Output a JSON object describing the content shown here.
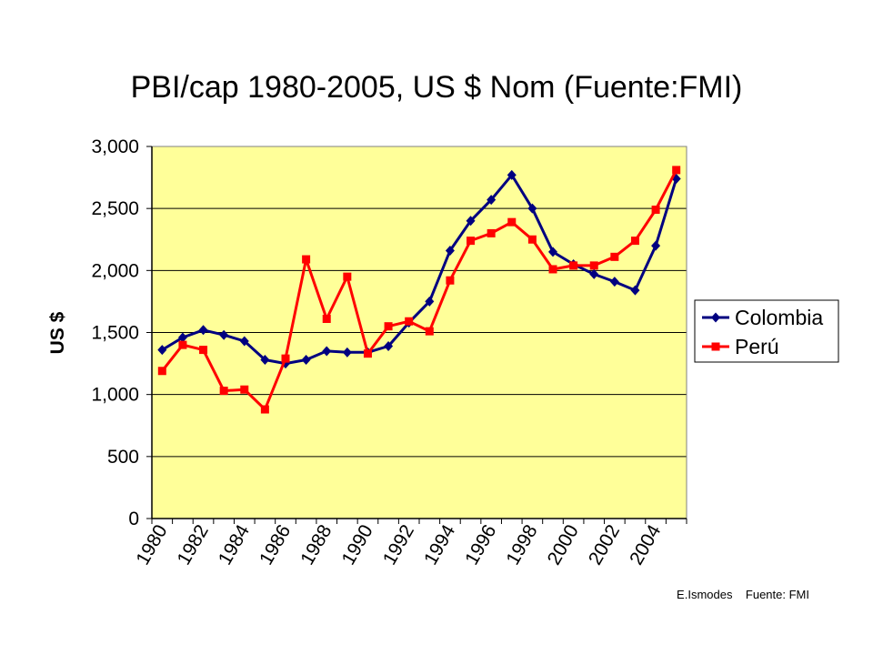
{
  "chart_data": {
    "type": "line",
    "title": "PBI/cap 1980-2005, US $ Nom (Fuente:FMI)",
    "xlabel": "",
    "ylabel": "US $",
    "ylim": [
      0,
      3000
    ],
    "yticks": [
      "0",
      "500",
      "1,000",
      "1,500",
      "2,000",
      "2,500",
      "3,000"
    ],
    "xtick_labels": [
      "1980",
      "1982",
      "1984",
      "1986",
      "1988",
      "1990",
      "1992",
      "1994",
      "1996",
      "1998",
      "2000",
      "2002",
      "2004"
    ],
    "x": [
      1980,
      1981,
      1982,
      1983,
      1984,
      1985,
      1986,
      1987,
      1988,
      1989,
      1990,
      1991,
      1992,
      1993,
      1994,
      1995,
      1996,
      1997,
      1998,
      1999,
      2000,
      2001,
      2002,
      2003,
      2004,
      2005
    ],
    "series": [
      {
        "name": "Colombia",
        "color": "#000080",
        "marker": "diamond",
        "values": [
          1360,
          1460,
          1520,
          1480,
          1430,
          1280,
          1250,
          1280,
          1350,
          1340,
          1340,
          1390,
          1580,
          1750,
          2160,
          2400,
          2570,
          2770,
          2500,
          2150,
          2050,
          1970,
          1910,
          1840,
          2200,
          2740
        ]
      },
      {
        "name": "Perú",
        "color": "#ff0000",
        "marker": "square",
        "values": [
          1190,
          1400,
          1360,
          1030,
          1040,
          880,
          1290,
          2090,
          1610,
          1950,
          1330,
          1550,
          1590,
          1510,
          1920,
          2240,
          2300,
          2390,
          2250,
          2010,
          2040,
          2040,
          2110,
          2240,
          2490,
          2810
        ]
      }
    ],
    "grid": true,
    "legend_position": "right",
    "plot_background": "#ffff99",
    "credit": "E.Ismodes    Fuente: FMI"
  }
}
